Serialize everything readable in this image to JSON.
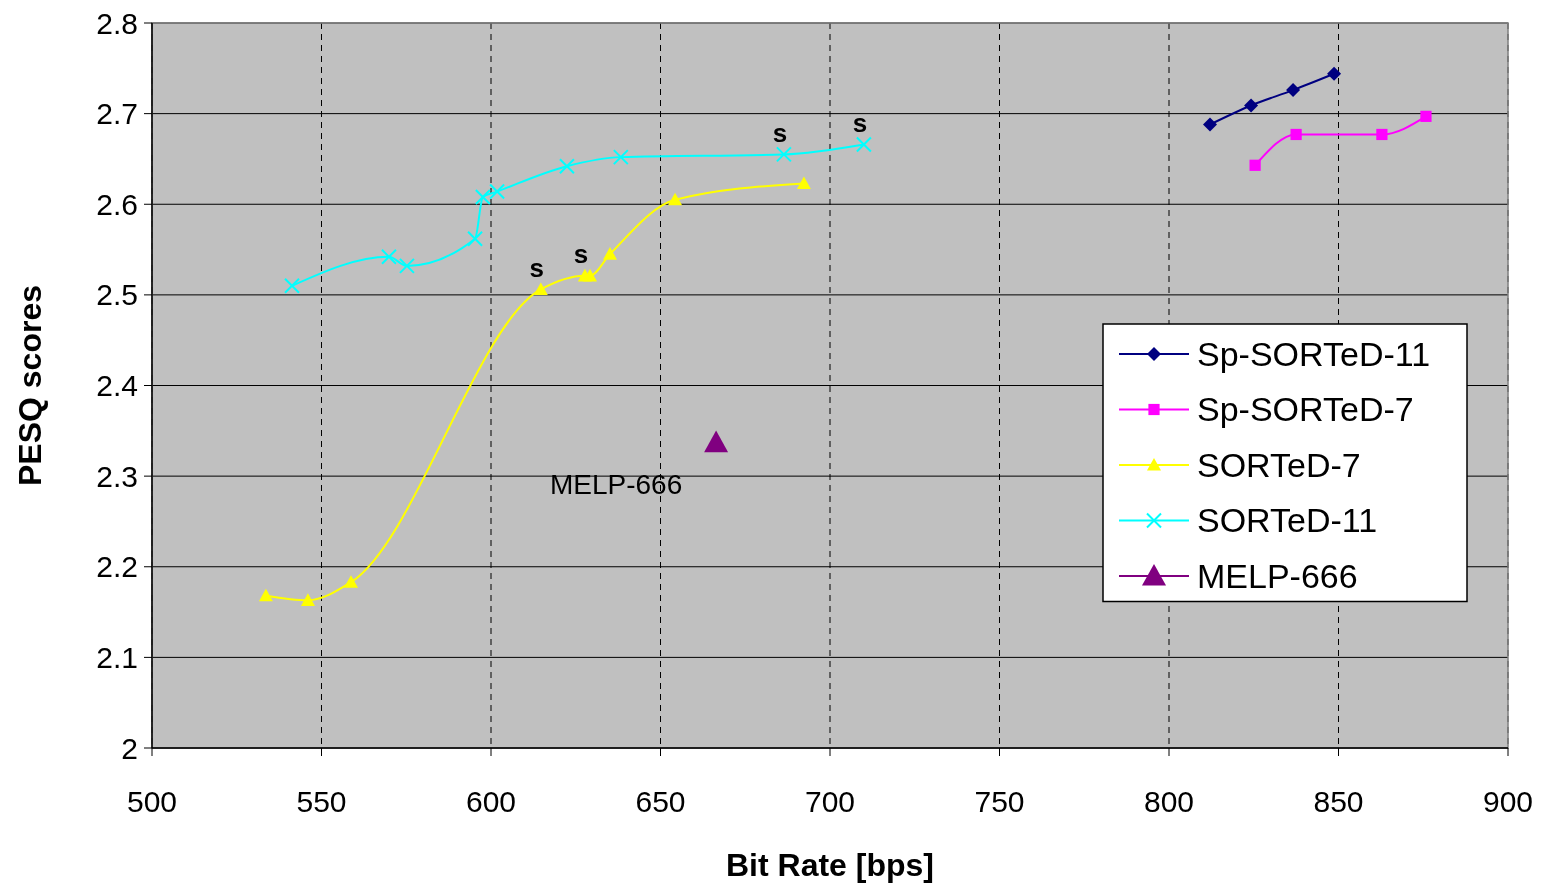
{
  "chart_data": {
    "type": "line",
    "xlabel": "Bit Rate [bps]",
    "ylabel": "PESQ scores",
    "xlim": [
      500,
      900
    ],
    "xticks": [
      500,
      550,
      600,
      650,
      700,
      750,
      800,
      850,
      900
    ],
    "ylim": [
      2,
      2.8
    ],
    "yticks": [
      2,
      2.1,
      2.2,
      2.3,
      2.4,
      2.5,
      2.6,
      2.7,
      2.8
    ],
    "grid": true,
    "legend": "right",
    "series": [
      {
        "name": "Sp-SORTeD-11",
        "color": "#000080",
        "marker": "diamond",
        "x": [
          812.1,
          824.2,
          836.6,
          848.7
        ],
        "values": [
          2.688,
          2.709,
          2.726,
          2.744
        ]
      },
      {
        "name": "Sp-SORTeD-7",
        "color": "#ff00ff",
        "marker": "square",
        "x": [
          825.4,
          837.5,
          862.8,
          875.8
        ],
        "values": [
          2.643,
          2.677,
          2.677,
          2.697
        ]
      },
      {
        "name": "SORTeD-7",
        "color": "#ffff00",
        "marker": "triangle",
        "x": [
          533.6,
          546.0,
          558.7,
          614.7,
          627.7,
          629.2,
          635.1,
          654.3,
          692.3
        ],
        "values": [
          2.168,
          2.163,
          2.183,
          2.506,
          2.521,
          2.521,
          2.545,
          2.605,
          2.623
        ]
      },
      {
        "name": "SORTeD-11",
        "color": "#00ffff",
        "marker": "cross",
        "x": [
          541.3,
          569.9,
          575.2,
          595.3,
          597.6,
          601.8,
          622.4,
          638.3,
          686.4,
          710.0
        ],
        "values": [
          2.51,
          2.542,
          2.532,
          2.562,
          2.608,
          2.614,
          2.642,
          2.652,
          2.655,
          2.666
        ]
      },
      {
        "name": "MELP-666",
        "type": "scatter",
        "color": "#800080",
        "marker": "triangle",
        "x": [
          666.4
        ],
        "values": [
          2.337
        ]
      }
    ],
    "annotations": [
      {
        "text": "s",
        "x": 614.7,
        "y": 2.506
      },
      {
        "text": "s",
        "x": 627.7,
        "y": 2.521
      },
      {
        "text": "s",
        "x": 686.4,
        "y": 2.655
      },
      {
        "text": "s",
        "x": 710.0,
        "y": 2.666
      },
      {
        "text": "MELP-666",
        "x": 666.4,
        "y": 2.337
      }
    ]
  }
}
